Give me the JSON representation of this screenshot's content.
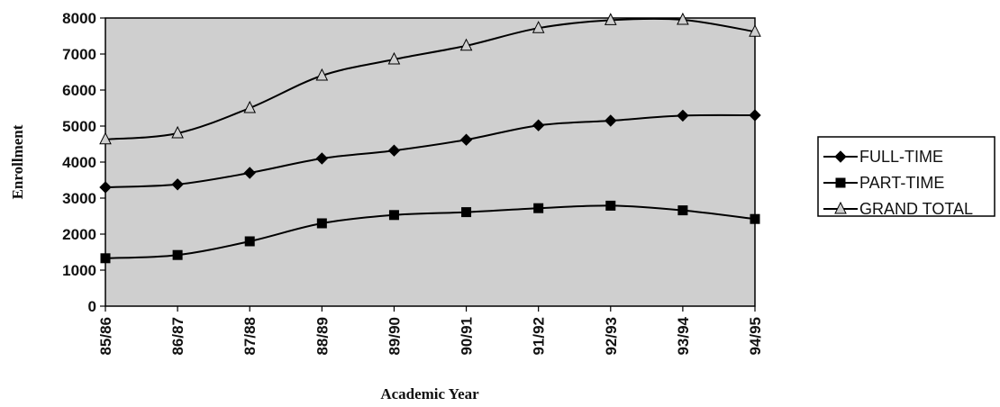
{
  "chart_data": {
    "type": "line",
    "title": "",
    "xlabel": "Academic Year",
    "ylabel": "Enrollment",
    "ylim": [
      0,
      8000
    ],
    "yticks": [
      0,
      1000,
      2000,
      3000,
      4000,
      5000,
      6000,
      7000,
      8000
    ],
    "categories": [
      "85/86",
      "86/87",
      "87/88",
      "88/89",
      "89/90",
      "90/91",
      "91/92",
      "92/93",
      "93/94",
      "94/95"
    ],
    "series": [
      {
        "name": "FULL-TIME",
        "marker": "diamond",
        "values": [
          3300,
          3380,
          3700,
          4100,
          4320,
          4620,
          5020,
          5150,
          5290,
          5300
        ]
      },
      {
        "name": "PART-TIME",
        "marker": "square",
        "values": [
          1330,
          1420,
          1800,
          2300,
          2530,
          2610,
          2720,
          2790,
          2660,
          2420
        ]
      },
      {
        "name": "GRAND TOTAL",
        "marker": "triangle",
        "values": [
          4630,
          4800,
          5500,
          6400,
          6850,
          7230,
          7720,
          7940,
          7950,
          7620
        ]
      }
    ],
    "grid": false,
    "legend_position": "right",
    "colors": {
      "plot_background": "#cfcfcf",
      "line": "#000000",
      "text": "#111111"
    }
  }
}
